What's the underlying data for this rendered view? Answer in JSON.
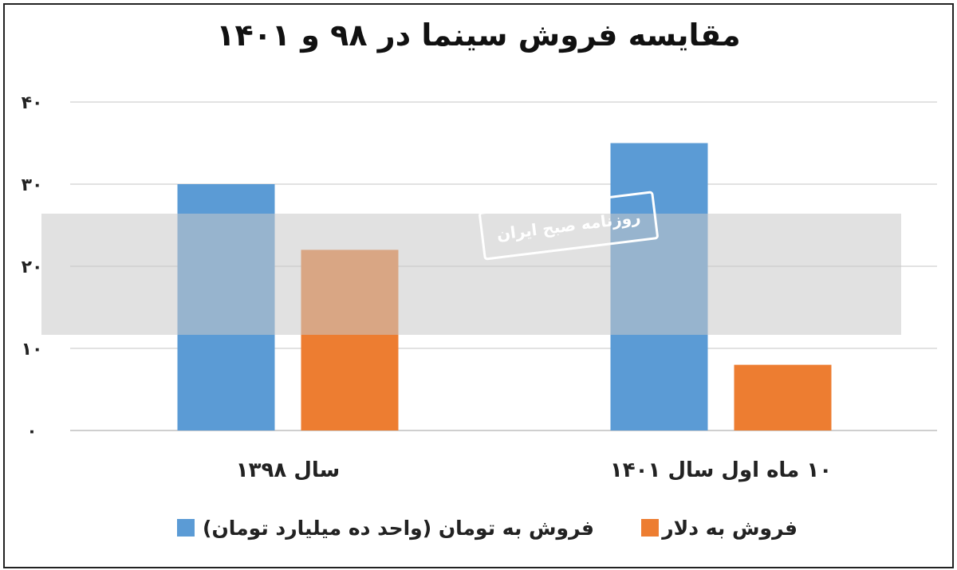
{
  "chart_data": {
    "type": "bar",
    "title": "مقایسه فروش سینما در ۹۸ و ۱۴۰۱",
    "categories": [
      "سال ۱۳۹۸",
      "۱۰ ماه اول سال ۱۴۰۱"
    ],
    "series": [
      {
        "name": "فروش به تومان (واحد ده میلیارد تومان)",
        "color": "#5b9bd5",
        "values": [
          30,
          35
        ]
      },
      {
        "name": "فروش به دلار",
        "color": "#ed7d31",
        "values": [
          22,
          8
        ]
      }
    ],
    "ylim": [
      0,
      40
    ],
    "yticks": [
      0,
      10,
      20,
      30,
      40
    ],
    "ytick_labels": [
      "۰",
      "۱۰",
      "۲۰",
      "۳۰",
      "۴۰"
    ],
    "grid": true,
    "legend_position": "bottom"
  },
  "watermark": {
    "label": "روزنامه صبح ایران"
  }
}
